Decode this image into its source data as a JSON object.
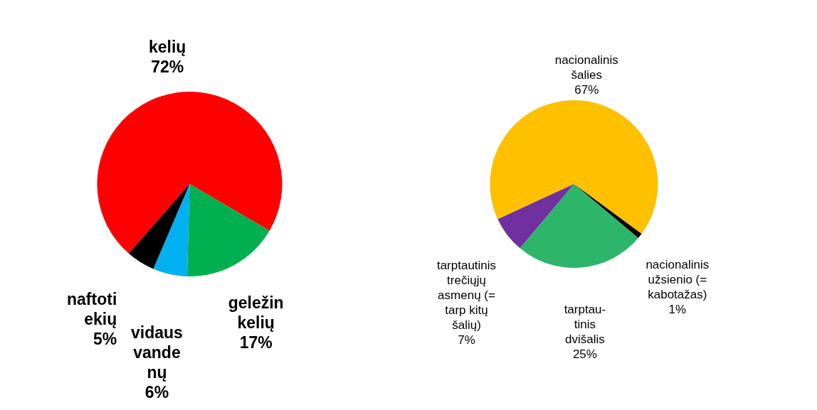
{
  "chart_data": [
    {
      "type": "pie",
      "categories": [
        "kelių",
        "geležin\nkelių",
        "vidaus\nvande\nnų",
        "naftoti\nekių"
      ],
      "values": [
        72,
        17,
        6,
        5
      ],
      "value_labels": [
        "72%",
        "17%",
        "6%",
        "5%"
      ],
      "colors": [
        "#ff0000",
        "#00b050",
        "#00b0f0",
        "#000000"
      ]
    },
    {
      "type": "pie",
      "categories": [
        "nacionalinis\nšalies",
        "nacionalinis\nužsienio (=\nkabotažas)",
        "tarptau-\ntinis\ndvišalis",
        "tarptautinis\ntrečiųjų\nasmenų (=\ntarp kitų\nšalių)"
      ],
      "values": [
        67,
        1,
        25,
        7
      ],
      "value_labels": [
        "67%",
        "1%",
        "25%",
        "7%"
      ],
      "colors": [
        "#ffc000",
        "#000000",
        "#2db56a",
        "#7030a0"
      ]
    }
  ]
}
